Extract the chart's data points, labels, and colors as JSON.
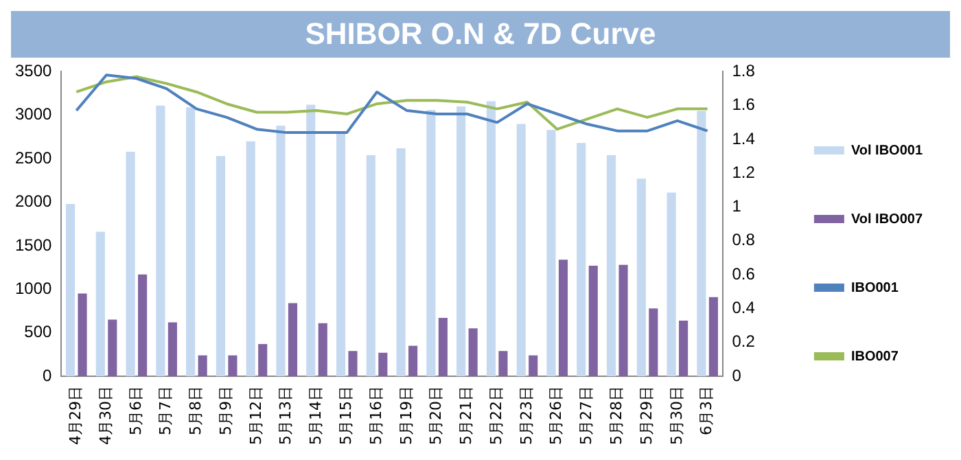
{
  "chart_data": {
    "type": "bar",
    "title": "SHIBOR O.N & 7D Curve",
    "categories": [
      "4月29日",
      "4月30日",
      "5月6日",
      "5月7日",
      "5月8日",
      "5月9日",
      "5月12日",
      "5月13日",
      "5月14日",
      "5月15日",
      "5月16日",
      "5月19日",
      "5月20日",
      "5月21日",
      "5月22日",
      "5月23日",
      "5月26日",
      "5月27日",
      "5月28日",
      "5月29日",
      "5月30日",
      "6月3日"
    ],
    "series": [
      {
        "name": "Vol IBO001",
        "axis": "y",
        "color": "#c5d9f1",
        "values": [
          1980,
          1660,
          2580,
          3110,
          3090,
          2530,
          2700,
          2880,
          3120,
          2800,
          2540,
          2620,
          3060,
          3100,
          3160,
          2900,
          2830,
          2680,
          2540,
          2270,
          2110,
          3050
        ]
      },
      {
        "name": "Vol IBO007",
        "axis": "y",
        "color": "#8064a2",
        "values": [
          950,
          650,
          1170,
          620,
          240,
          240,
          370,
          840,
          610,
          290,
          270,
          350,
          670,
          550,
          290,
          240,
          1340,
          1270,
          1280,
          780,
          640,
          910
        ]
      },
      {
        "name": "IBO001",
        "type": "line",
        "axis": "y2",
        "color": "#4f81bd",
        "values": [
          1.57,
          1.78,
          1.76,
          1.7,
          1.58,
          1.53,
          1.46,
          1.44,
          1.44,
          1.44,
          1.68,
          1.57,
          1.55,
          1.55,
          1.5,
          1.61,
          1.55,
          1.49,
          1.45,
          1.45,
          1.51,
          1.45
        ]
      },
      {
        "name": "IBO007",
        "type": "line",
        "axis": "y2",
        "color": "#9bbb59",
        "values": [
          1.68,
          1.74,
          1.77,
          1.73,
          1.68,
          1.61,
          1.56,
          1.56,
          1.57,
          1.55,
          1.61,
          1.63,
          1.63,
          1.62,
          1.58,
          1.62,
          1.46,
          1.52,
          1.58,
          1.53,
          1.58,
          1.58
        ]
      }
    ],
    "ylim": [
      0,
      3500
    ],
    "yticks": [
      0,
      500,
      1000,
      1500,
      2000,
      2500,
      3000,
      3500
    ],
    "y2lim": [
      0,
      1.8
    ],
    "y2ticks": [
      0,
      0.2,
      0.4,
      0.6,
      0.8,
      1,
      1.2,
      1.4,
      1.6,
      1.8
    ],
    "grid": false,
    "legend": "right",
    "marker": "none"
  }
}
